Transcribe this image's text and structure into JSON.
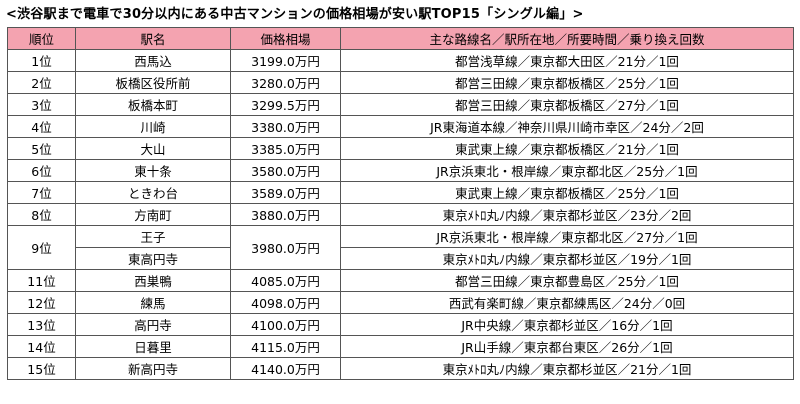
{
  "title": "<渋谷駅まで電車で30分以内にある中古マンションの価格相場が安い駅TOP15「シングル編」>",
  "table": {
    "headers": [
      "順位",
      "駅名",
      "価格相場",
      "主な路線名／駅所在地／所要時間／乗り換え回数"
    ],
    "rows": [
      {
        "rank": "1位",
        "stations": [
          {
            "name": "西馬込",
            "info": "都営浅草線／東京都大田区／21分／1回"
          }
        ],
        "price": "3199.0万円"
      },
      {
        "rank": "2位",
        "stations": [
          {
            "name": "板橋区役所前",
            "info": "都営三田線／東京都板橋区／25分／1回"
          }
        ],
        "price": "3280.0万円"
      },
      {
        "rank": "3位",
        "stations": [
          {
            "name": "板橋本町",
            "info": "都営三田線／東京都板橋区／27分／1回"
          }
        ],
        "price": "3299.5万円"
      },
      {
        "rank": "4位",
        "stations": [
          {
            "name": "川崎",
            "info": "JR東海道本線／神奈川県川崎市幸区／24分／2回"
          }
        ],
        "price": "3380.0万円"
      },
      {
        "rank": "5位",
        "stations": [
          {
            "name": "大山",
            "info": "東武東上線／東京都板橋区／21分／1回"
          }
        ],
        "price": "3385.0万円"
      },
      {
        "rank": "6位",
        "stations": [
          {
            "name": "東十条",
            "info": "JR京浜東北・根岸線／東京都北区／25分／1回"
          }
        ],
        "price": "3580.0万円"
      },
      {
        "rank": "7位",
        "stations": [
          {
            "name": "ときわ台",
            "info": "東武東上線／東京都板橋区／25分／1回"
          }
        ],
        "price": "3589.0万円"
      },
      {
        "rank": "8位",
        "stations": [
          {
            "name": "方南町",
            "info": "東京ﾒﾄﾛ丸ﾉ内線／東京都杉並区／23分／2回"
          }
        ],
        "price": "3880.0万円"
      },
      {
        "rank": "9位",
        "stations": [
          {
            "name": "王子",
            "info": "JR京浜東北・根岸線／東京都北区／27分／1回"
          },
          {
            "name": "東高円寺",
            "info": "東京ﾒﾄﾛ丸ﾉ内線／東京都杉並区／19分／1回"
          }
        ],
        "price": "3980.0万円"
      },
      {
        "rank": "11位",
        "stations": [
          {
            "name": "西巣鴨",
            "info": "都営三田線／東京都豊島区／25分／1回"
          }
        ],
        "price": "4085.0万円"
      },
      {
        "rank": "12位",
        "stations": [
          {
            "name": "練馬",
            "info": "西武有楽町線／東京都練馬区／24分／0回"
          }
        ],
        "price": "4098.0万円"
      },
      {
        "rank": "13位",
        "stations": [
          {
            "name": "高円寺",
            "info": "JR中央線／東京都杉並区／16分／1回"
          }
        ],
        "price": "4100.0万円"
      },
      {
        "rank": "14位",
        "stations": [
          {
            "name": "日暮里",
            "info": "JR山手線／東京都台東区／26分／1回"
          }
        ],
        "price": "4115.0万円"
      },
      {
        "rank": "15位",
        "stations": [
          {
            "name": "新高円寺",
            "info": "東京ﾒﾄﾛ丸ﾉ内線／東京都杉並区／21分／1回"
          }
        ],
        "price": "4140.0万円"
      }
    ]
  },
  "colors": {
    "header_bg": "#f4a3b0",
    "border": "#555555"
  }
}
